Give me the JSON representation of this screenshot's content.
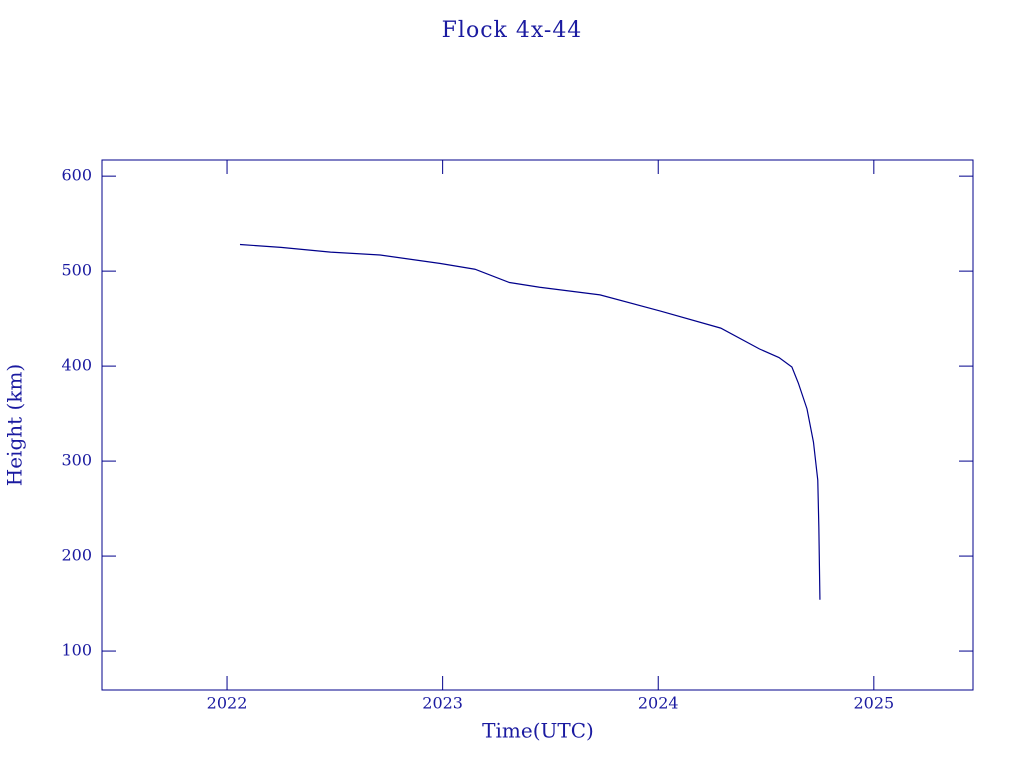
{
  "chart_data": {
    "type": "line",
    "title": "Flock 4x-44",
    "xlabel": "Time(UTC)",
    "ylabel": "Height (km)",
    "color": "#00008b",
    "x": [
      2022.06,
      2022.25,
      2022.48,
      2022.71,
      2022.99,
      2023.15,
      2023.31,
      2023.45,
      2023.73,
      2024.01,
      2024.29,
      2024.47,
      2024.56,
      2024.62,
      2024.65,
      2024.69,
      2024.72,
      2024.74,
      2024.745,
      2024.75
    ],
    "values": [
      528,
      525,
      520,
      517,
      508,
      502,
      488,
      483,
      475,
      458,
      440,
      418,
      409,
      399,
      382,
      355,
      320,
      280,
      230,
      154
    ],
    "xlim": [
      2021.42,
      2025.46
    ],
    "xticks": [
      2022,
      2023,
      2024,
      2025
    ],
    "ylim": [
      59,
      617
    ],
    "yticks": [
      100,
      200,
      300,
      400,
      500,
      600
    ]
  }
}
